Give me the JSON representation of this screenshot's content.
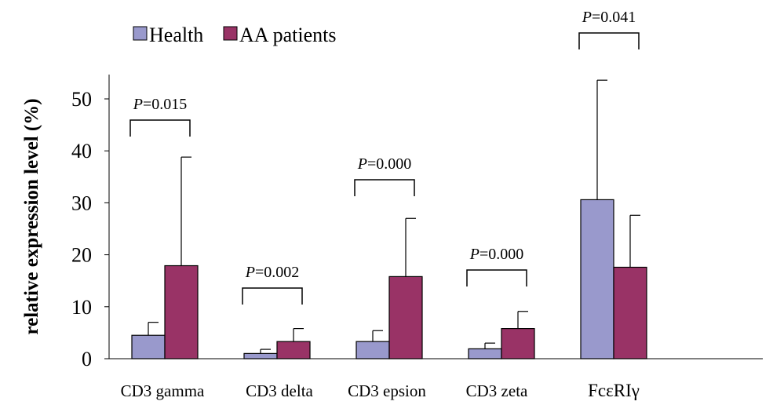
{
  "chart_data": {
    "type": "bar",
    "title": "",
    "xlabel": "",
    "ylabel": "relative expression level (%)",
    "ylim": [
      0,
      55
    ],
    "yticks": [
      0,
      10,
      20,
      30,
      40,
      50
    ],
    "grid": false,
    "legend": "top-left",
    "categories": [
      "CD3 gamma",
      "CD3 delta",
      "CD3 epsion",
      "CD3 zeta",
      "FcεRIγ"
    ],
    "series": [
      {
        "name": "Health",
        "color": "#9999cc",
        "values": [
          4.5,
          1.0,
          3.3,
          1.9,
          30.6
        ],
        "errors": [
          2.5,
          0.8,
          2.1,
          1.1,
          23.0
        ]
      },
      {
        "name": "AA patients",
        "color": "#993366",
        "values": [
          17.9,
          3.3,
          15.8,
          5.8,
          17.6
        ],
        "errors": [
          20.9,
          2.5,
          11.2,
          3.3,
          10.0
        ]
      }
    ],
    "annotations": [
      {
        "category": "CD3 gamma",
        "p_letter": "P",
        "p_value": "=0.015"
      },
      {
        "category": "CD3 delta",
        "p_letter": "P",
        "p_value": "=0.002"
      },
      {
        "category": "CD3 epsion",
        "p_letter": "P",
        "p_value": "=0.000"
      },
      {
        "category": "CD3 zeta",
        "p_letter": "P",
        "p_value": "=0.000"
      },
      {
        "category": "FcεRIγ",
        "p_letter": "P",
        "p_value": "=0.041"
      }
    ]
  }
}
